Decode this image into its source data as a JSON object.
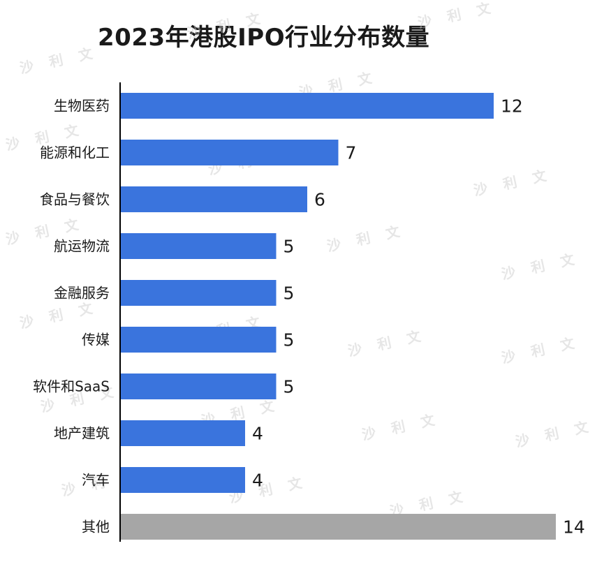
{
  "chart_data": {
    "type": "bar",
    "orientation": "horizontal",
    "title": "2023年港股IPO行业分布数量",
    "xlabel": "",
    "ylabel": "",
    "xlim": [
      0,
      14
    ],
    "categories": [
      "生物医药",
      "能源和化工",
      "食品与餐饮",
      "航运物流",
      "金融服务",
      "传媒",
      "软件和SaaS",
      "地产建筑",
      "汽车",
      "其他"
    ],
    "values": [
      12,
      7,
      6,
      5,
      5,
      5,
      5,
      4,
      4,
      14
    ],
    "bar_colors": [
      "#3a74dd",
      "#3a74dd",
      "#3a74dd",
      "#3a74dd",
      "#3a74dd",
      "#3a74dd",
      "#3a74dd",
      "#3a74dd",
      "#3a74dd",
      "#a6a6a6"
    ],
    "data_labels": true,
    "grid": false,
    "legend": "none"
  },
  "watermark": "沙 利 文"
}
